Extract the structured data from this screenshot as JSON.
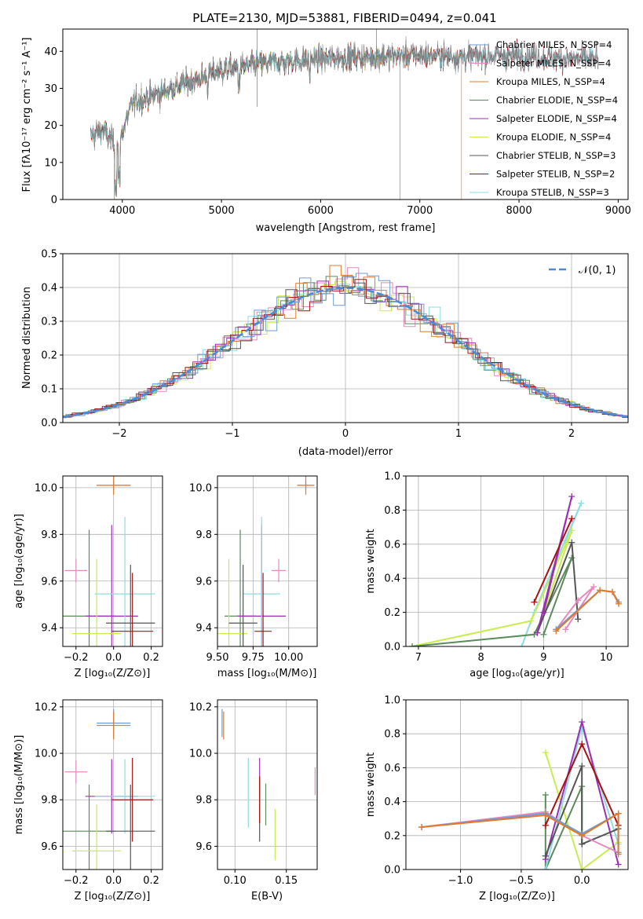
{
  "colors": {
    "chabrier_miles": "#6f9bd1",
    "salpeter_miles": "#e58ac0",
    "kroupa_miles": "#e07b2e",
    "chabrier_elodie": "#5b8a5b",
    "salpeter_elodie": "#9b2fb4",
    "kroupa_elodie": "#c9ec4e",
    "chabrier_stelib": "#555555",
    "salpeter_stelib": "#aa1111",
    "kroupa_stelib": "#8ddde2",
    "gauss": "#4a8bd6"
  },
  "chart_data": [
    {
      "type": "line",
      "title": "PLATE=2130, MJD=53881, FIBERID=0494, z=0.041",
      "xlabel": "wavelength [Angstrom, rest frame]",
      "ylabel": "Flux [fλ10⁻¹⁷ erg cm⁻² s⁻¹ A⁻¹]",
      "xlim": [
        3400,
        9100
      ],
      "ylim": [
        0,
        46
      ],
      "xticks": [
        "4000",
        "5000",
        "6000",
        "7000",
        "8000",
        "9000"
      ],
      "yticks": [
        "0",
        "10",
        "20",
        "30",
        "40"
      ],
      "grid": false,
      "legend": "right",
      "continuum": {
        "x": [
          3680,
          3800,
          3950,
          4100,
          4300,
          4600,
          5000,
          5500,
          6000,
          6500,
          7000,
          7500,
          8000,
          8500,
          8800
        ],
        "y": [
          17,
          19,
          14,
          26,
          28,
          31,
          35,
          37,
          38,
          38.5,
          39,
          38.5,
          39,
          38,
          38
        ]
      },
      "series": [
        {
          "name": "Chabrier MILES, N_SSP=4",
          "color_key": "chabrier_miles"
        },
        {
          "name": "Salpeter MILES, N_SSP=4",
          "color_key": "salpeter_miles"
        },
        {
          "name": "Kroupa MILES, N_SSP=4",
          "color_key": "kroupa_miles",
          "cutoff": 7420
        },
        {
          "name": "Chabrier ELODIE, N_SSP=4",
          "color_key": "chabrier_elodie",
          "cutoff": 6800
        },
        {
          "name": "Salpeter ELODIE, N_SSP=4",
          "color_key": "salpeter_elodie",
          "cutoff": 6800
        },
        {
          "name": "Kroupa ELODIE, N_SSP=4",
          "color_key": "kroupa_elodie",
          "cutoff": 6800
        },
        {
          "name": "Chabrier STELIB, N_SSP=3",
          "color_key": "chabrier_stelib"
        },
        {
          "name": "Salpeter STELIB, N_SSP=2",
          "color_key": "salpeter_stelib"
        },
        {
          "name": "Kroupa STELIB, N_SSP=3",
          "color_key": "kroupa_stelib"
        }
      ]
    },
    {
      "type": "bar",
      "xlabel": "(data-model)/error",
      "ylabel": "Normed distribution",
      "xlim": [
        -2.5,
        2.5
      ],
      "ylim": [
        0,
        0.5
      ],
      "xticks": [
        "−2",
        "−1",
        "0",
        "1",
        "2"
      ],
      "yticks": [
        "0.0",
        "0.1",
        "0.2",
        "0.3",
        "0.4",
        "0.5"
      ],
      "grid": true,
      "legend": "𝒩(0, 1)",
      "bin_width": 0.1,
      "note": "histograms of normalized residuals for each of the 9 fits, closely following N(0,1)"
    },
    {
      "type": "scatter",
      "xlabel": "Z [log₁₀(Z/Z⊙)]",
      "ylabel": "age  [log₁₀(age/yr)]",
      "xlim": [
        -0.27,
        0.26
      ],
      "ylim": [
        9.32,
        10.05
      ],
      "xticks": [
        "−0.2",
        "0.0",
        "0.2"
      ],
      "xtick_values": [
        -0.2,
        0.0,
        0.2
      ],
      "yticks": [
        "9.4",
        "9.6",
        "9.8",
        "10.0"
      ],
      "ytick_values": [
        9.4,
        9.6,
        9.8,
        10.0
      ],
      "grid": true,
      "points": [
        {
          "c": "chabrier_miles",
          "x": 0.0,
          "y": 10.01,
          "xe": 0.09,
          "ye": 0.02
        },
        {
          "c": "kroupa_miles",
          "x": 0.0,
          "y": 10.01,
          "xe": 0.09,
          "ye": 0.04
        },
        {
          "c": "salpeter_miles",
          "x": -0.2,
          "y": 9.645,
          "xe": 0.06,
          "ye": 0.05
        },
        {
          "c": "chabrier_elodie",
          "x": -0.13,
          "y": 9.45,
          "xe": 0.14,
          "ye": 0.37
        },
        {
          "c": "salpeter_elodie",
          "x": -0.01,
          "y": 9.45,
          "xe": 0.14,
          "ye": 0.39
        },
        {
          "c": "kroupa_elodie",
          "x": -0.09,
          "y": 9.375,
          "xe": 0.13,
          "ye": 0.32
        },
        {
          "c": "kroupa_stelib",
          "x": 0.06,
          "y": 9.545,
          "xe": 0.16,
          "ye": 0.33
        },
        {
          "c": "chabrier_stelib",
          "x": 0.09,
          "y": 9.42,
          "xe": 0.13,
          "ye": 0.25
        },
        {
          "c": "salpeter_stelib",
          "x": 0.1,
          "y": 9.385,
          "xe": 0.11,
          "ye": 0.25
        }
      ]
    },
    {
      "type": "scatter",
      "xlabel": "mass [log₁₀(M/M⊙)]",
      "xlim": [
        9.5,
        10.2
      ],
      "ylim": [
        9.32,
        10.05
      ],
      "xticks": [
        "9.50",
        "9.75",
        "10.00"
      ],
      "xtick_values": [
        9.5,
        9.75,
        10.0
      ],
      "yticks": [
        "9.4",
        "9.6",
        "9.8",
        "10.0"
      ],
      "ytick_values": [
        9.4,
        9.6,
        9.8,
        10.0
      ],
      "grid": true,
      "points": [
        {
          "c": "chabrier_miles",
          "x": 10.12,
          "y": 10.01,
          "xe": 0.06,
          "ye": 0.02
        },
        {
          "c": "kroupa_miles",
          "x": 10.12,
          "y": 10.01,
          "xe": 0.06,
          "ye": 0.04
        },
        {
          "c": "salpeter_miles",
          "x": 9.93,
          "y": 9.645,
          "xe": 0.05,
          "ye": 0.05
        },
        {
          "c": "chabrier_elodie",
          "x": 9.66,
          "y": 9.45,
          "xe": 0.11,
          "ye": 0.37
        },
        {
          "c": "salpeter_elodie",
          "x": 9.81,
          "y": 9.45,
          "xe": 0.17,
          "ye": 0.39
        },
        {
          "c": "kroupa_elodie",
          "x": 9.58,
          "y": 9.375,
          "xe": 0.13,
          "ye": 0.32
        },
        {
          "c": "kroupa_stelib",
          "x": 9.81,
          "y": 9.545,
          "xe": 0.13,
          "ye": 0.33
        },
        {
          "c": "chabrier_stelib",
          "x": 9.68,
          "y": 9.42,
          "xe": 0.1,
          "ye": 0.25
        },
        {
          "c": "salpeter_stelib",
          "x": 9.82,
          "y": 9.385,
          "xe": 0.06,
          "ye": 0.25
        }
      ]
    },
    {
      "type": "line",
      "xlabel": "age  [log₁₀(age/yr)]",
      "ylabel": "mass weight",
      "xlim": [
        6.8,
        10.35
      ],
      "ylim": [
        0,
        1
      ],
      "xticks": [
        "7",
        "8",
        "9",
        "10"
      ],
      "xtick_values": [
        7,
        8,
        9,
        10
      ],
      "yticks": [
        "0.0",
        "0.2",
        "0.4",
        "0.6",
        "0.8",
        "1.0"
      ],
      "ytick_values": [
        0,
        0.2,
        0.4,
        0.6,
        0.8,
        1.0
      ],
      "grid": true,
      "series": [
        {
          "c": "kroupa_stelib",
          "pts": [
            [
              8.65,
              0.0
            ],
            [
              8.85,
              0.2
            ],
            [
              9.6,
              0.84
            ],
            [
              9.35,
              0.62
            ]
          ]
        },
        {
          "c": "kroupa_elodie",
          "pts": [
            [
              6.9,
              0.0
            ],
            [
              8.8,
              0.15
            ],
            [
              9.45,
              0.68
            ],
            [
              9.0,
              0.2
            ]
          ]
        },
        {
          "c": "chabrier_elodie",
          "pts": [
            [
              6.9,
              0.0
            ],
            [
              8.85,
              0.07
            ],
            [
              9.45,
              0.52
            ],
            [
              9.0,
              0.07
            ]
          ]
        },
        {
          "c": "chabrier_stelib",
          "pts": [
            [
              8.9,
              0.08
            ],
            [
              9.45,
              0.61
            ],
            [
              9.55,
              0.16
            ]
          ]
        },
        {
          "c": "salpeter_elodie",
          "pts": [
            [
              8.9,
              0.08
            ],
            [
              9.45,
              0.88
            ],
            [
              9.0,
              0.2
            ]
          ]
        },
        {
          "c": "salpeter_stelib",
          "pts": [
            [
              8.85,
              0.26
            ],
            [
              9.45,
              0.75
            ]
          ]
        },
        {
          "c": "salpeter_miles",
          "pts": [
            [
              9.2,
              0.1
            ],
            [
              9.55,
              0.27
            ],
            [
              9.8,
              0.35
            ],
            [
              9.35,
              0.1
            ]
          ]
        },
        {
          "c": "chabrier_miles",
          "pts": [
            [
              9.2,
              0.1
            ],
            [
              9.9,
              0.33
            ],
            [
              10.1,
              0.32
            ],
            [
              10.2,
              0.26
            ]
          ]
        },
        {
          "c": "kroupa_miles",
          "pts": [
            [
              9.2,
              0.09
            ],
            [
              9.9,
              0.33
            ],
            [
              10.1,
              0.32
            ],
            [
              10.2,
              0.25
            ]
          ]
        }
      ]
    },
    {
      "type": "scatter",
      "xlabel": "Z [log₁₀(Z/Z⊙)]",
      "ylabel": "mass [log₁₀(M/M⊙)]",
      "xlim": [
        -0.27,
        0.26
      ],
      "ylim": [
        9.5,
        10.23
      ],
      "xticks": [
        "−0.2",
        "0.0",
        "0.2"
      ],
      "xtick_values": [
        -0.2,
        0.0,
        0.2
      ],
      "yticks": [
        "9.6",
        "9.8",
        "10.0",
        "10.2"
      ],
      "ytick_values": [
        9.6,
        9.8,
        10.0,
        10.2
      ],
      "grid": true,
      "points": [
        {
          "c": "chabrier_miles",
          "x": 0.0,
          "y": 10.13,
          "xe": 0.09,
          "ye": 0.06
        },
        {
          "c": "kroupa_miles",
          "x": 0.0,
          "y": 10.12,
          "xe": 0.09,
          "ye": 0.06
        },
        {
          "c": "salpeter_miles",
          "x": -0.2,
          "y": 9.92,
          "xe": 0.06,
          "ye": 0.05
        },
        {
          "c": "chabrier_elodie",
          "x": -0.13,
          "y": 9.665,
          "xe": 0.14,
          "ye": 0.2
        },
        {
          "c": "salpeter_elodie",
          "x": -0.01,
          "y": 9.815,
          "xe": 0.14,
          "ye": 0.16
        },
        {
          "c": "kroupa_elodie",
          "x": -0.09,
          "y": 9.58,
          "xe": 0.13,
          "ye": 0.2
        },
        {
          "c": "kroupa_stelib",
          "x": 0.06,
          "y": 9.815,
          "xe": 0.16,
          "ye": 0.16
        },
        {
          "c": "chabrier_stelib",
          "x": 0.09,
          "y": 9.665,
          "xe": 0.13,
          "ye": 0.2
        },
        {
          "c": "salpeter_stelib",
          "x": 0.1,
          "y": 9.8,
          "xe": 0.11,
          "ye": 0.18
        }
      ]
    },
    {
      "type": "scatter",
      "xlabel": "E(B-V)",
      "xlim": [
        0.083,
        0.18
      ],
      "ylim": [
        9.5,
        10.23
      ],
      "xticks": [
        "0.10",
        "0.15"
      ],
      "xtick_values": [
        0.1,
        0.15
      ],
      "yticks": [
        "9.6",
        "9.8",
        "10.0",
        "10.2"
      ],
      "ytick_values": [
        9.6,
        9.8,
        10.0,
        10.2
      ],
      "grid": true,
      "points": [
        {
          "c": "chabrier_miles",
          "x": 0.0875,
          "y": 10.13,
          "xe": 0.0,
          "ye": 0.06
        },
        {
          "c": "kroupa_miles",
          "x": 0.089,
          "y": 10.12,
          "xe": 0.0,
          "ye": 0.06
        },
        {
          "c": "salpeter_miles",
          "x": 0.178,
          "y": 9.88,
          "xe": 0.0,
          "ye": 0.06
        },
        {
          "c": "chabrier_elodie",
          "x": 0.13,
          "y": 9.78,
          "xe": 0.0,
          "ye": 0.09
        },
        {
          "c": "salpeter_elodie",
          "x": 0.124,
          "y": 9.9,
          "xe": 0.0,
          "ye": 0.08
        },
        {
          "c": "kroupa_elodie",
          "x": 0.139,
          "y": 9.65,
          "xe": 0.0,
          "ye": 0.11
        },
        {
          "c": "kroupa_stelib",
          "x": 0.113,
          "y": 9.83,
          "xe": 0.0,
          "ye": 0.15
        },
        {
          "c": "chabrier_stelib",
          "x": 0.124,
          "y": 9.75,
          "xe": 0.0,
          "ye": 0.13
        },
        {
          "c": "salpeter_stelib",
          "x": 0.124,
          "y": 9.8,
          "xe": 0.0,
          "ye": 0.1
        }
      ]
    },
    {
      "type": "line",
      "xlabel": "Z [log₁₀(Z/Z⊙)]",
      "ylabel": "mass weight",
      "xlim": [
        -1.45,
        0.38
      ],
      "ylim": [
        0,
        1
      ],
      "xticks": [
        "−1.0",
        "−0.5",
        "0.0"
      ],
      "xtick_values": [
        -1.0,
        -0.5,
        0.0
      ],
      "yticks": [
        "0.0",
        "0.2",
        "0.4",
        "0.6",
        "0.8",
        "1.0"
      ],
      "ytick_values": [
        0,
        0.2,
        0.4,
        0.6,
        0.8,
        1.0
      ],
      "grid": true,
      "series": [
        {
          "c": "kroupa_elodie",
          "pts": [
            [
              -0.3,
              0.69
            ],
            [
              0.0,
              0.0
            ],
            [
              0.3,
              0.16
            ]
          ]
        },
        {
          "c": "chabrier_elodie",
          "pts": [
            [
              -0.3,
              0.44
            ],
            [
              -0.3,
              0.0
            ],
            [
              0.0,
              0.49
            ],
            [
              0.0,
              0.15
            ]
          ]
        },
        {
          "c": "kroupa_stelib",
          "pts": [
            [
              -0.3,
              0.0
            ],
            [
              0.0,
              0.84
            ],
            [
              0.3,
              0.15
            ]
          ]
        },
        {
          "c": "salpeter_elodie",
          "pts": [
            [
              -0.3,
              0.06
            ],
            [
              0.0,
              0.87
            ],
            [
              0.3,
              0.03
            ]
          ]
        },
        {
          "c": "salpeter_stelib",
          "pts": [
            [
              -0.3,
              0.26
            ],
            [
              0.0,
              0.74
            ],
            [
              0.3,
              0.26
            ]
          ]
        },
        {
          "c": "chabrier_stelib",
          "pts": [
            [
              -0.3,
              0.08
            ],
            [
              0.0,
              0.61
            ],
            [
              0.0,
              0.15
            ],
            [
              0.3,
              0.24
            ]
          ]
        },
        {
          "c": "salpeter_miles",
          "pts": [
            [
              -1.32,
              0.25
            ],
            [
              -0.3,
              0.34
            ],
            [
              0.0,
              0.2
            ],
            [
              0.3,
              0.1
            ]
          ]
        },
        {
          "c": "chabrier_miles",
          "pts": [
            [
              -1.32,
              0.25
            ],
            [
              -0.3,
              0.33
            ],
            [
              0.0,
              0.21
            ],
            [
              0.3,
              0.33
            ],
            [
              0.3,
              0.1
            ]
          ]
        },
        {
          "c": "kroupa_miles",
          "pts": [
            [
              -1.32,
              0.25
            ],
            [
              -0.3,
              0.32
            ],
            [
              0.0,
              0.2
            ],
            [
              0.3,
              0.33
            ],
            [
              0.3,
              0.09
            ]
          ]
        }
      ]
    }
  ]
}
